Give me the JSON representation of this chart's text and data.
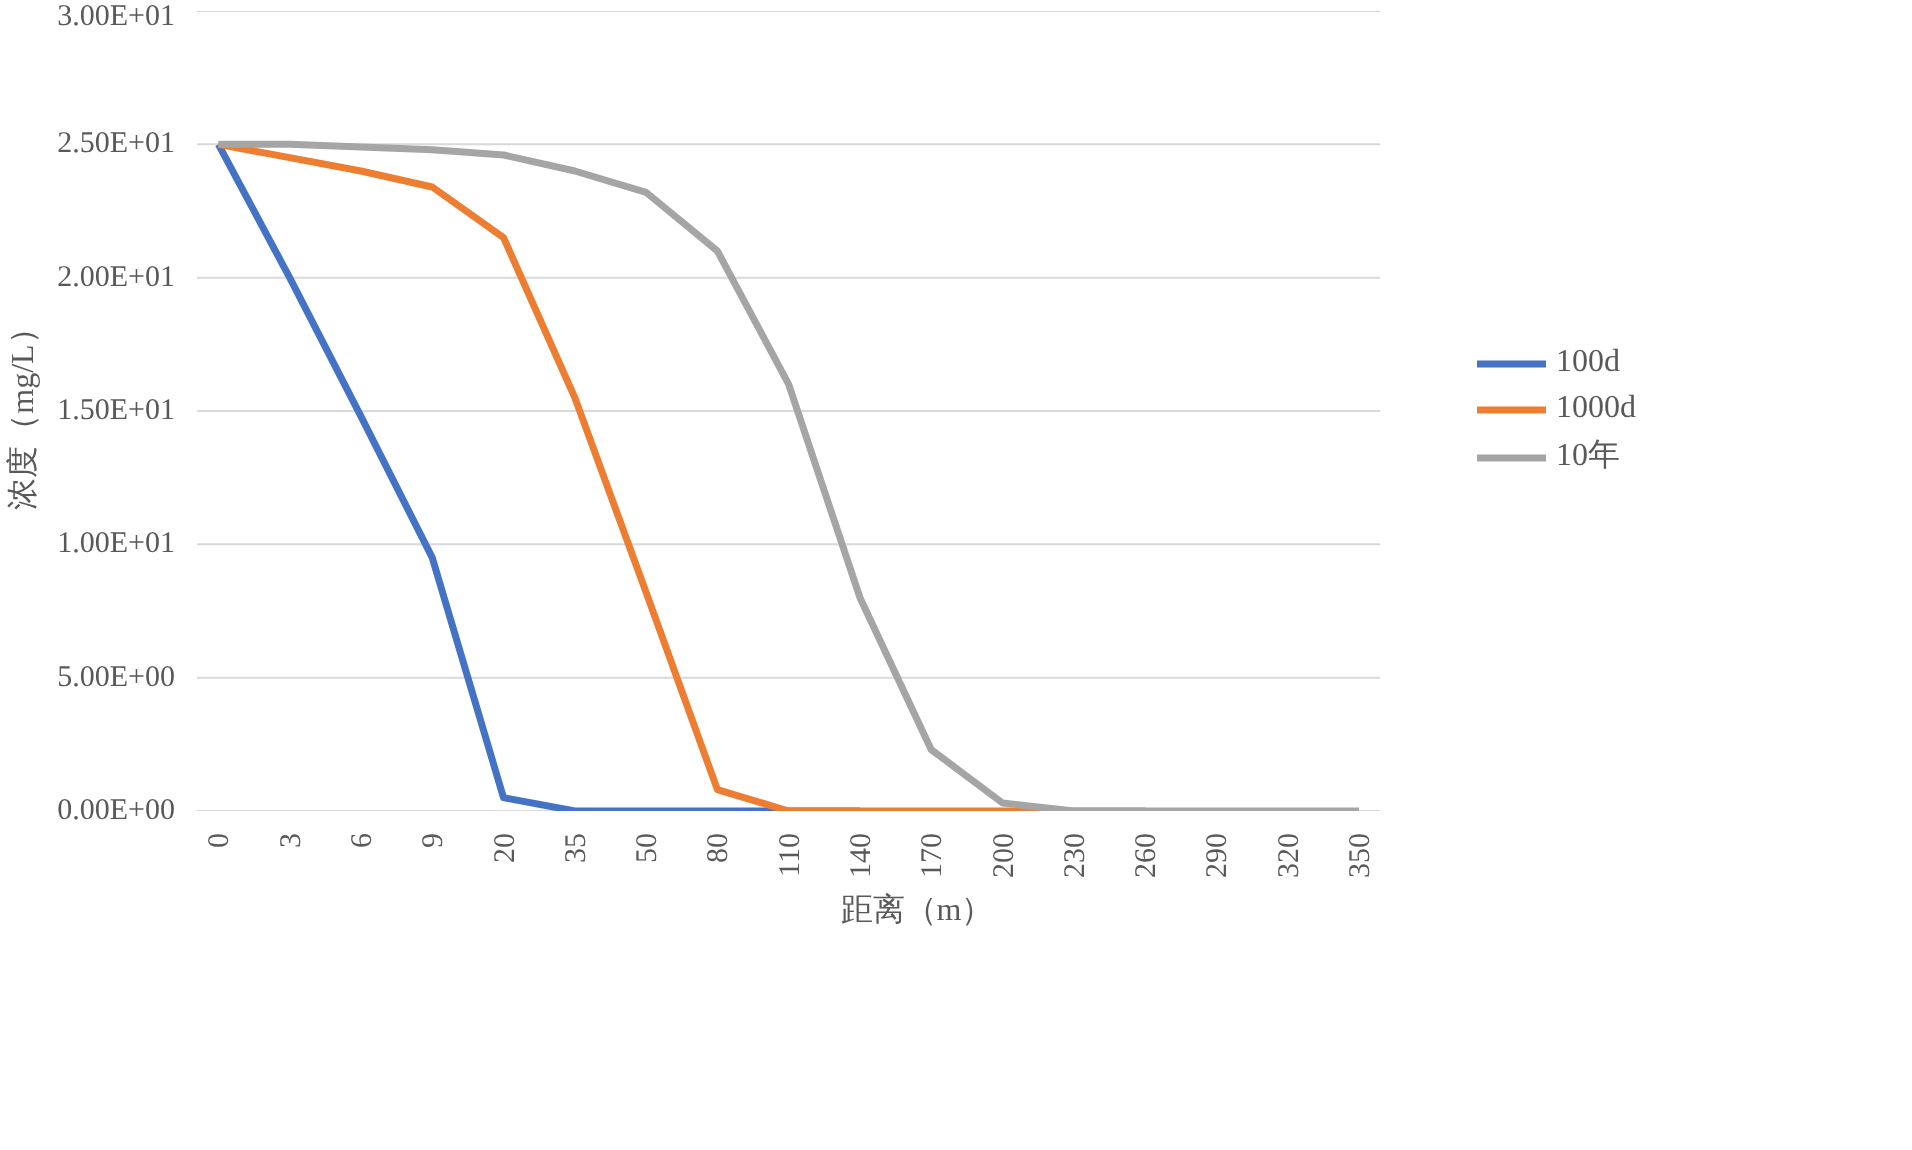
{
  "chart_data": {
    "type": "line",
    "xlabel": "距离（m）",
    "ylabel": "浓度（mg/L）",
    "categories": [
      "0",
      "3",
      "6",
      "9",
      "20",
      "35",
      "50",
      "80",
      "110",
      "140",
      "170",
      "200",
      "230",
      "260",
      "290",
      "320",
      "350"
    ],
    "series": [
      {
        "name": "100d",
        "color": "#4472c4",
        "values": [
          25,
          20,
          14.8,
          9.5,
          0.5,
          0,
          0,
          0,
          0,
          0,
          null,
          null,
          null,
          null,
          null,
          null,
          null
        ]
      },
      {
        "name": "1000d",
        "color": "#ed7d31",
        "values": [
          25,
          24.5,
          24,
          23.4,
          21.5,
          15.5,
          8.2,
          0.8,
          0,
          0,
          0,
          0,
          0,
          0,
          null,
          null,
          null
        ]
      },
      {
        "name": "10年",
        "color": "#a5a5a5",
        "values": [
          25,
          25,
          24.9,
          24.8,
          24.6,
          24,
          23.2,
          21,
          16,
          8,
          2.3,
          0.3,
          0,
          0,
          0,
          0,
          0
        ]
      }
    ],
    "ylim": [
      0,
      30
    ],
    "yticks": [
      {
        "value": 0,
        "label": "0.00E+00"
      },
      {
        "value": 5,
        "label": "5.00E+00"
      },
      {
        "value": 10,
        "label": "1.00E+01"
      },
      {
        "value": 15,
        "label": "1.50E+01"
      },
      {
        "value": 20,
        "label": "2.00E+01"
      },
      {
        "value": 25,
        "label": "2.50E+01"
      },
      {
        "value": 30,
        "label": "3.00E+01"
      }
    ],
    "grid": "y",
    "legend": "right",
    "marker": "none",
    "line_style": "solid"
  }
}
